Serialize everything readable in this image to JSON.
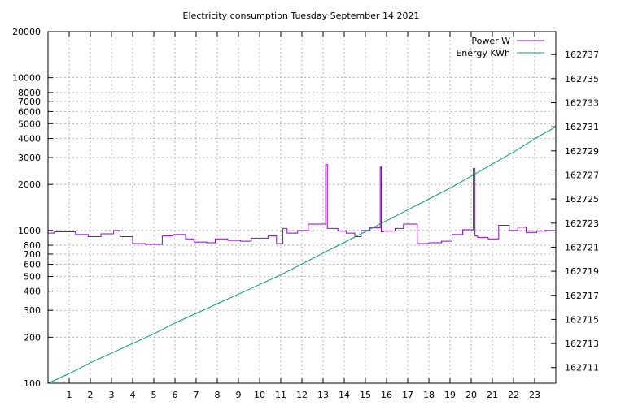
{
  "chart_data": {
    "type": "line",
    "title": "Electricity consumption Tuesday September 14 2021",
    "xlabel": "",
    "ylabel": "",
    "y2label": "",
    "xlim": [
      0,
      24
    ],
    "ylim": [
      100,
      20000
    ],
    "y_scale": "log",
    "y2lim": [
      162709.7,
      162738.9
    ],
    "grid": true,
    "legend_position": "top-right",
    "x_ticks": [
      1,
      2,
      3,
      4,
      5,
      6,
      7,
      8,
      9,
      10,
      11,
      12,
      13,
      14,
      15,
      16,
      17,
      18,
      19,
      20,
      21,
      22,
      23
    ],
    "y_ticks": [
      {
        "value": 100,
        "label": "100"
      },
      {
        "value": 200,
        "label": "200"
      },
      {
        "value": 300,
        "label": "300"
      },
      {
        "value": 400,
        "label": "400"
      },
      {
        "value": 500,
        "label": "500"
      },
      {
        "value": 600,
        "label": "600"
      },
      {
        "value": 700,
        "label": "700"
      },
      {
        "value": 800,
        "label": "800"
      },
      {
        "value": 1000,
        "label": "1000"
      },
      {
        "value": 2000,
        "label": "2000"
      },
      {
        "value": 3000,
        "label": "3000"
      },
      {
        "value": 4000,
        "label": "4000"
      },
      {
        "value": 5000,
        "label": "5000"
      },
      {
        "value": 6000,
        "label": "6000"
      },
      {
        "value": 7000,
        "label": "7000"
      },
      {
        "value": 8000,
        "label": "8000"
      },
      {
        "value": 10000,
        "label": "10000"
      },
      {
        "value": 20000,
        "label": "20000"
      }
    ],
    "y2_ticks": [
      162711,
      162713,
      162715,
      162717,
      162719,
      162721,
      162723,
      162725,
      162727,
      162729,
      162731,
      162733,
      162735,
      162737
    ],
    "series": [
      {
        "name": "Power W",
        "axis": "y",
        "color": "#9400d3",
        "step": true,
        "x": [
          0,
          0.3,
          1.3,
          1.9,
          2.5,
          3.1,
          3.4,
          4.0,
          4.6,
          5.4,
          5.9,
          6.5,
          6.9,
          7.5,
          7.9,
          8.5,
          9.1,
          9.6,
          10.4,
          10.8,
          11.1,
          11.3,
          11.8,
          12.3,
          13.0,
          13.12,
          13.2,
          13.7,
          14.1,
          14.5,
          14.8,
          15.2,
          15.7,
          15.75,
          15.85,
          16.4,
          16.8,
          17.45,
          18.0,
          18.6,
          19.1,
          19.6,
          20.1,
          20.18,
          20.3,
          20.8,
          21.3,
          21.8,
          22.2,
          22.6,
          23.1,
          23.5,
          24.0
        ],
        "y": [
          960,
          980,
          940,
          910,
          950,
          1000,
          910,
          820,
          810,
          920,
          940,
          880,
          840,
          830,
          880,
          860,
          850,
          890,
          920,
          820,
          1030,
          960,
          1000,
          1100,
          1100,
          2700,
          1030,
          990,
          960,
          910,
          1000,
          1040,
          2600,
          980,
          990,
          1030,
          1100,
          820,
          830,
          850,
          940,
          1010,
          2550,
          920,
          900,
          880,
          1080,
          1000,
          1050,
          970,
          990,
          1000,
          1000
        ]
      },
      {
        "name": "Energy KWh",
        "axis": "y2",
        "color": "#009e73",
        "step": false,
        "x": [
          0,
          1,
          2,
          3,
          4,
          5,
          6,
          7,
          8,
          9,
          10,
          11,
          12,
          13,
          14,
          15,
          16,
          17,
          18,
          19,
          20,
          21,
          22,
          23,
          24
        ],
        "y": [
          162709.7,
          162710.5,
          162711.4,
          162712.2,
          162713.0,
          162713.8,
          162714.7,
          162715.5,
          162716.3,
          162717.1,
          162717.9,
          162718.7,
          162719.6,
          162720.5,
          162721.4,
          162722.3,
          162723.2,
          162724.1,
          162725.0,
          162725.9,
          162726.9,
          162727.9,
          162728.9,
          162730.0,
          162731.0
        ]
      }
    ]
  }
}
